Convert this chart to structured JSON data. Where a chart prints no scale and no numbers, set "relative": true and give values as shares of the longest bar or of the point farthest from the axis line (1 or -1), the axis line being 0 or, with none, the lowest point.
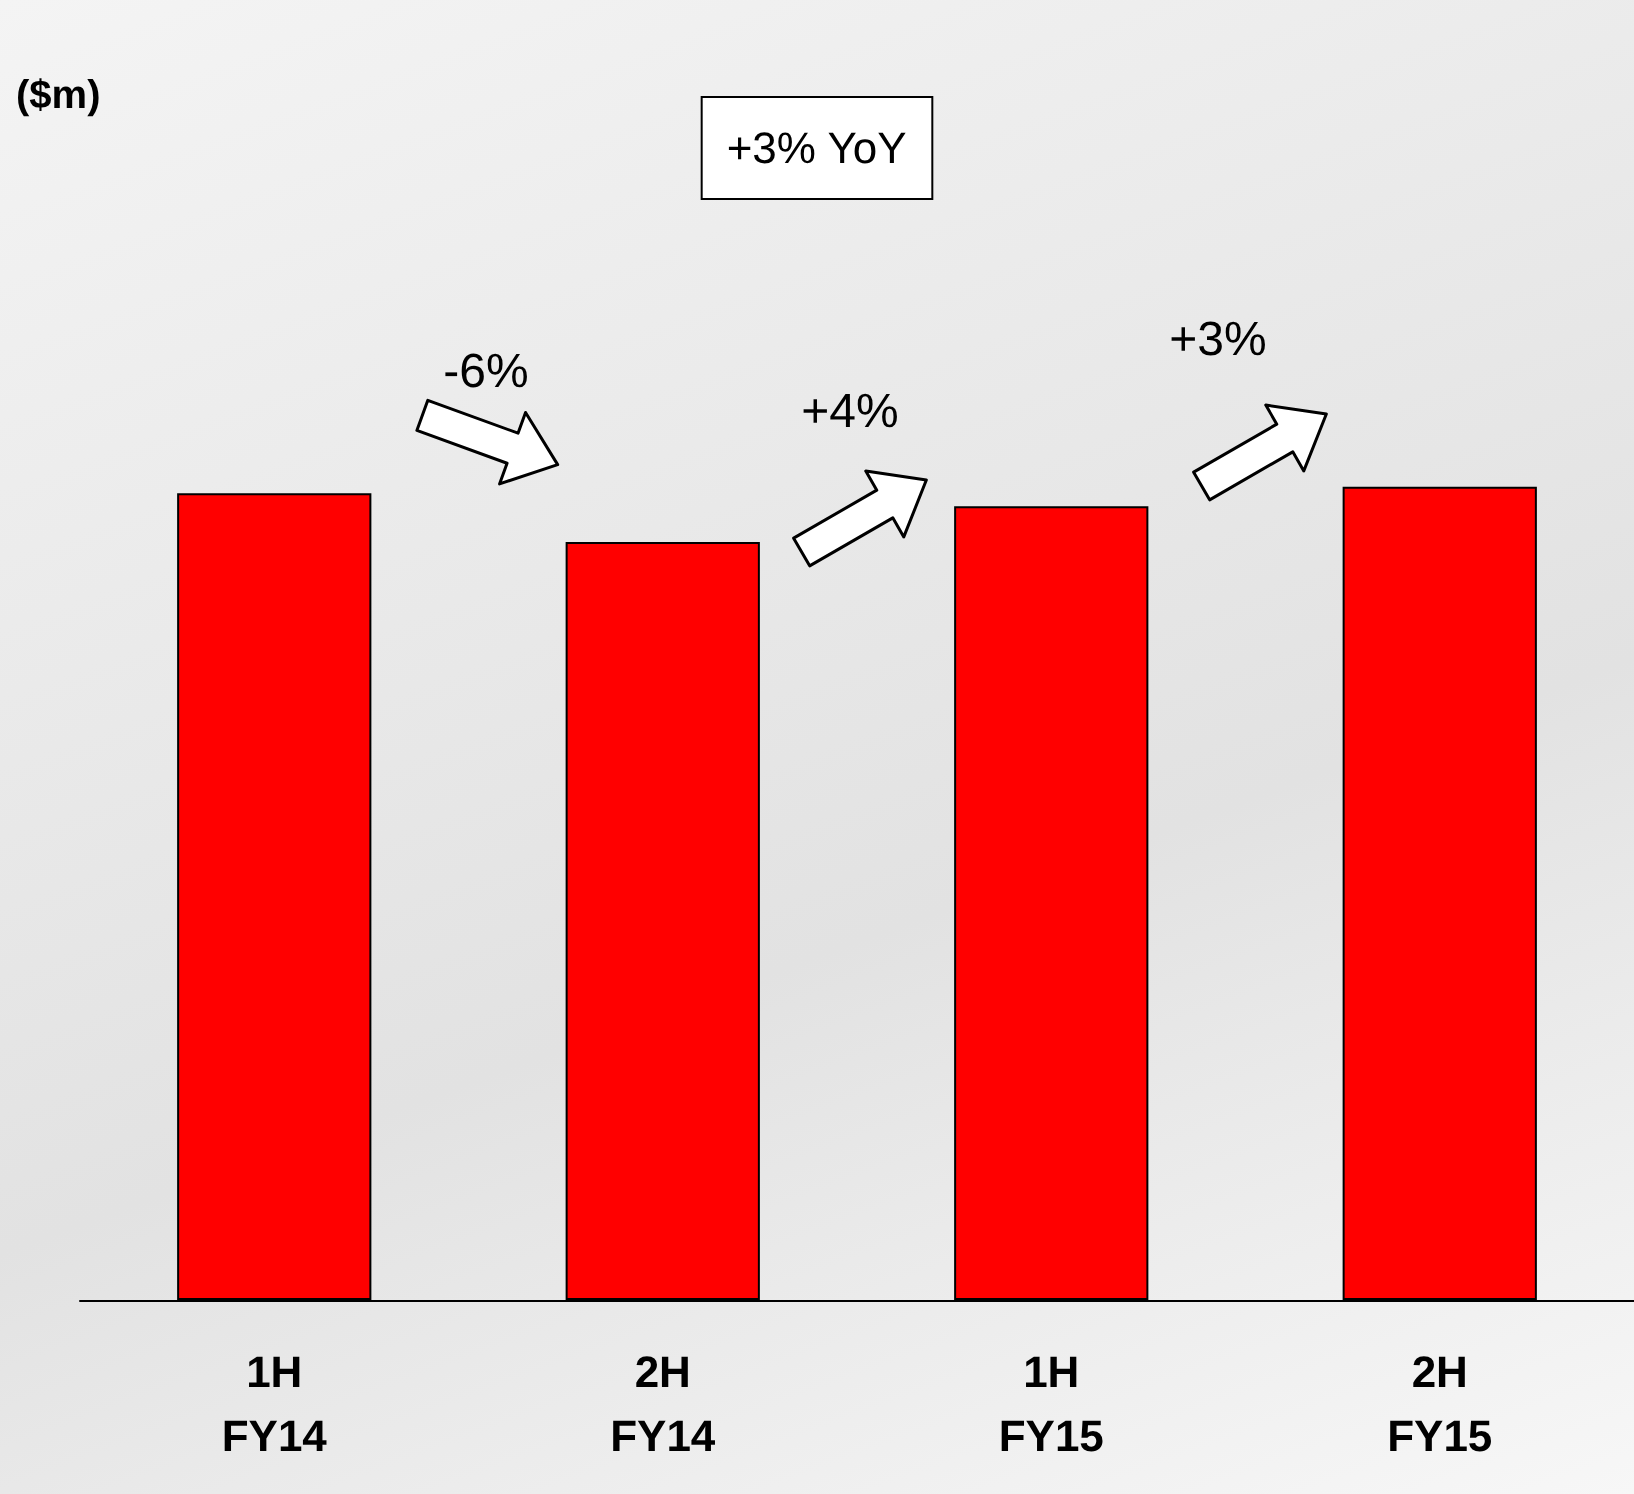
{
  "chart_data": {
    "type": "bar",
    "relative": true,
    "categories": [
      "1H FY14",
      "2H FY14",
      "1H FY15",
      "2H FY15"
    ],
    "values": [
      0.992,
      0.932,
      0.976,
      1
    ],
    "color": "#ff0000",
    "annotations": [
      "($m)",
      "+3% YoY",
      "-6%",
      "+4%",
      "+3%"
    ]
  }
}
